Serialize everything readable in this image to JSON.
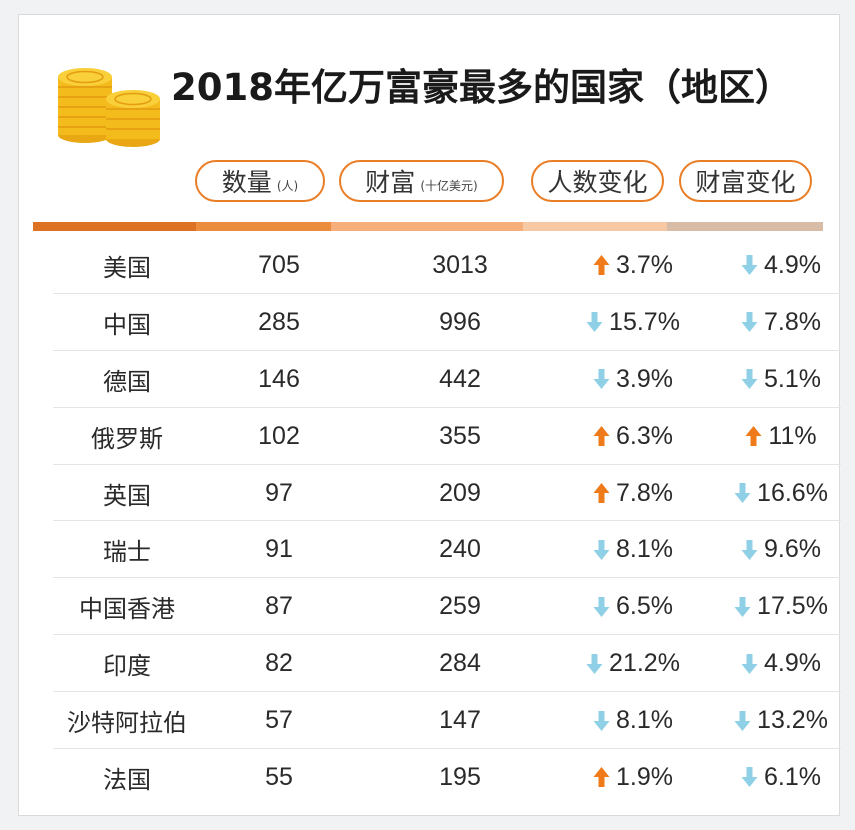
{
  "title": "2018年亿万富豪最多的国家（地区）",
  "headers": {
    "count": "数量",
    "count_unit": "(人)",
    "wealth": "财富",
    "wealth_unit": "(十亿美元)",
    "people_change": "人数变化",
    "wealth_change": "财富变化"
  },
  "colors": {
    "up": "#ef7a1a",
    "down": "#8fd0e6",
    "pill_border": "#e97e27",
    "bar_segments": [
      "#de7224",
      "#ec8c3d",
      "#f6ae7b",
      "#f7c8a4",
      "#d9bca6"
    ]
  },
  "icons": {
    "up": "up-arrow-icon",
    "down": "down-arrow-icon",
    "logo": "gold-coins-icon"
  },
  "chart_data": {
    "type": "table",
    "title": "2018年亿万富豪最多的国家（地区）",
    "columns": [
      "",
      "数量(人)",
      "财富(十亿美元)",
      "人数变化",
      "财富变化"
    ],
    "rows": [
      {
        "name": "美国",
        "count": "705",
        "wealth": "3013",
        "people_change": "3.7%",
        "people_dir": "up",
        "wealth_change": "4.9%",
        "wealth_dir": "down"
      },
      {
        "name": "中国",
        "count": "285",
        "wealth": "996",
        "people_change": "15.7%",
        "people_dir": "down",
        "wealth_change": "7.8%",
        "wealth_dir": "down"
      },
      {
        "name": "德国",
        "count": "146",
        "wealth": "442",
        "people_change": "3.9%",
        "people_dir": "down",
        "wealth_change": "5.1%",
        "wealth_dir": "down"
      },
      {
        "name": "俄罗斯",
        "count": "102",
        "wealth": "355",
        "people_change": "6.3%",
        "people_dir": "up",
        "wealth_change": "11%",
        "wealth_dir": "up"
      },
      {
        "name": "英国",
        "count": "97",
        "wealth": "209",
        "people_change": "7.8%",
        "people_dir": "up",
        "wealth_change": "16.6%",
        "wealth_dir": "down"
      },
      {
        "name": "瑞士",
        "count": "91",
        "wealth": "240",
        "people_change": "8.1%",
        "people_dir": "down",
        "wealth_change": "9.6%",
        "wealth_dir": "down"
      },
      {
        "name": "中国香港",
        "count": "87",
        "wealth": "259",
        "people_change": "6.5%",
        "people_dir": "down",
        "wealth_change": "17.5%",
        "wealth_dir": "down"
      },
      {
        "name": "印度",
        "count": "82",
        "wealth": "284",
        "people_change": "21.2%",
        "people_dir": "down",
        "wealth_change": "4.9%",
        "wealth_dir": "down"
      },
      {
        "name": "沙特阿拉伯",
        "count": "57",
        "wealth": "147",
        "people_change": "8.1%",
        "people_dir": "down",
        "wealth_change": "13.2%",
        "wealth_dir": "down"
      },
      {
        "name": "法国",
        "count": "55",
        "wealth": "195",
        "people_change": "1.9%",
        "people_dir": "up",
        "wealth_change": "6.1%",
        "wealth_dir": "down"
      }
    ]
  }
}
